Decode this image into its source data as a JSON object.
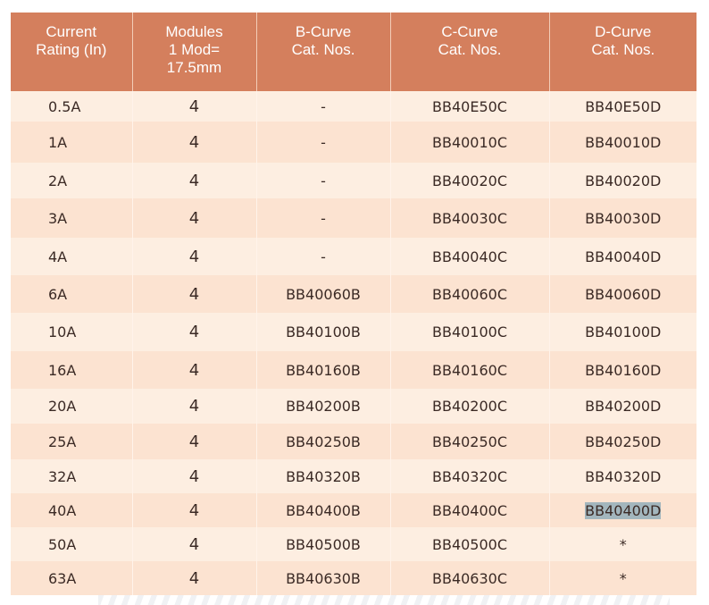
{
  "headers": [
    "Current\nRating (In)",
    "Modules\n1 Mod=\n17.5mm",
    "B-Curve\nCat. Nos.",
    "C-Curve\nCat. Nos.",
    "D-Curve\nCat. Nos."
  ],
  "rows": [
    [
      "0.5A",
      "4",
      "-",
      "BB40E50C",
      "BB40E50D"
    ],
    [
      "1A",
      "4",
      "-",
      "BB40010C",
      "BB40010D"
    ],
    [
      "2A",
      "4",
      "-",
      "BB40020C",
      "BB40020D"
    ],
    [
      "3A",
      "4",
      "-",
      "BB40030C",
      "BB40030D"
    ],
    [
      "4A",
      "4",
      "-",
      "BB40040C",
      "BB40040D"
    ],
    [
      "6A",
      "4",
      "BB40060B",
      "BB40060C",
      "BB40060D"
    ],
    [
      "10A",
      "4",
      "BB40100B",
      "BB40100C",
      "BB40100D"
    ],
    [
      "16A",
      "4",
      "BB40160B",
      "BB40160C",
      "BB40160D"
    ],
    [
      "20A",
      "4",
      "BB40200B",
      "BB40200C",
      "BB40200D"
    ],
    [
      "25A",
      "4",
      "BB40250B",
      "BB40250C",
      "BB40250D"
    ],
    [
      "32A",
      "4",
      "BB40320B",
      "BB40320C",
      "BB40320D"
    ],
    [
      "40A",
      "4",
      "BB40400B",
      "BB40400C",
      "BB40400D"
    ],
    [
      "50A",
      "4",
      "BB40500B",
      "BB40500C",
      "*"
    ],
    [
      "63A",
      "4",
      "BB40630B",
      "BB40630C",
      "*"
    ]
  ],
  "colors": {
    "header": "#d47f5d",
    "row_light": "#fdeee1",
    "row_dark": "#fce3d1",
    "text": "#3b2a25",
    "selection": "#a3b6bd"
  },
  "selected_cell": "BB40400D"
}
